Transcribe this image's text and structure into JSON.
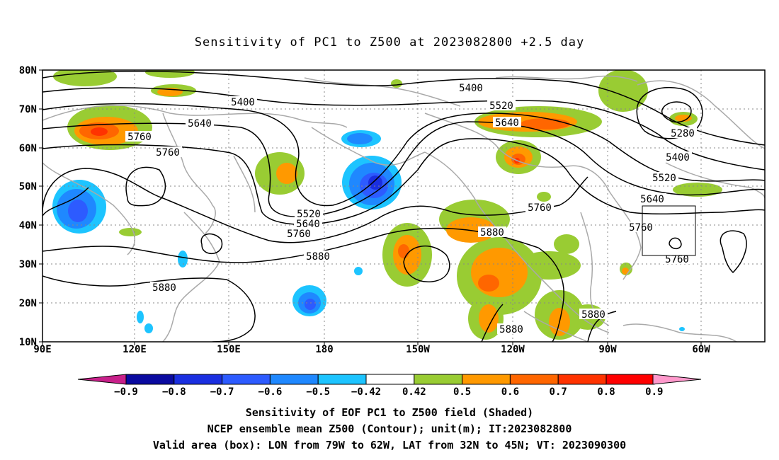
{
  "title": "Sensitivity of PC1 to Z500 at 2023082800 +2.5 day",
  "map": {
    "lat_labels": [
      "80N",
      "70N",
      "60N",
      "50N",
      "40N",
      "30N",
      "20N",
      "10N"
    ],
    "lon_labels": [
      "90E",
      "120E",
      "150E",
      "180",
      "150W",
      "120W",
      "90W",
      "60W"
    ],
    "contour_labels": [
      "5400",
      "5400",
      "5520",
      "5640",
      "5640",
      "5760",
      "5760",
      "5760",
      "5520",
      "5640",
      "5760",
      "5880",
      "5880",
      "5760",
      "5280",
      "5400",
      "5520",
      "5640",
      "5760",
      "5880",
      "5880",
      "5880"
    ],
    "valid_box": {
      "lon_west": "79W",
      "lon_east": "62W",
      "lat_south": "32N",
      "lat_north": "45N"
    }
  },
  "colorbar": {
    "labels": [
      "−0.9",
      "−0.8",
      "−0.7",
      "−0.6",
      "−0.5",
      "−0.42",
      "0.42",
      "0.5",
      "0.6",
      "0.7",
      "0.8",
      "0.9"
    ],
    "colors": [
      "#0a0aa0",
      "#1a2fe0",
      "#2d5bff",
      "#1f88ff",
      "#1dc4ff",
      "#ffffff",
      "#99cc33",
      "#ff9900",
      "#ff6600",
      "#ff3300",
      "#ff0000"
    ],
    "under_color": "#c8208a",
    "over_color": "#ff99cc"
  },
  "captions": {
    "line1": "Sensitivity of EOF PC1 to Z500 field (Shaded)",
    "line2": "NCEP ensemble mean Z500 (Contour); unit(m); IT:2023082800",
    "line3": "Valid area (box): LON from 79W to 62W, LAT from 32N to 45N; VT: 2023090300"
  }
}
